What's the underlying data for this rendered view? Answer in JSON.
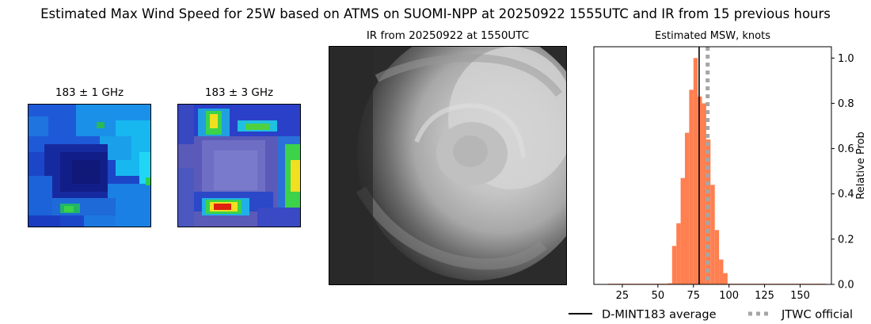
{
  "figure": {
    "title": "Estimated Max Wind Speed for 25W based on ATMS on SUOMI-NPP at 20250922 1555UTC and IR from 15 previous hours"
  },
  "panels": {
    "mw1": {
      "title": "183 ± 1 GHz"
    },
    "mw2": {
      "title": "183 ± 3 GHz"
    },
    "ir": {
      "title": "IR from 20250922 at 1550UTC"
    }
  },
  "legend": {
    "items": [
      {
        "label": "D-MINT183 average",
        "color": "#000000",
        "style": "solid"
      },
      {
        "label": "JTWC official",
        "color": "#a6a6a6",
        "style": "dotted"
      }
    ]
  },
  "chart_data": {
    "type": "bar",
    "title": "Estimated MSW, knots",
    "xlabel": "",
    "ylabel": "Relative Prob",
    "xlim": [
      5,
      172
    ],
    "ylim": [
      0,
      1.05
    ],
    "xticks": [
      25,
      50,
      75,
      100,
      125,
      150
    ],
    "yticks": [
      0.0,
      0.2,
      0.4,
      0.6,
      0.8,
      1.0
    ],
    "yaxis_side": "right",
    "bar_color": "#ff7f50",
    "bin_width": 3,
    "bins": [
      {
        "x": 15,
        "value": 0.003
      },
      {
        "x": 18,
        "value": 0.003
      },
      {
        "x": 21,
        "value": 0.003
      },
      {
        "x": 24,
        "value": 0.003
      },
      {
        "x": 27,
        "value": 0.003
      },
      {
        "x": 30,
        "value": 0.003
      },
      {
        "x": 33,
        "value": 0.003
      },
      {
        "x": 36,
        "value": 0.003
      },
      {
        "x": 39,
        "value": 0.003
      },
      {
        "x": 42,
        "value": 0.003
      },
      {
        "x": 45,
        "value": 0.003
      },
      {
        "x": 48,
        "value": 0.003
      },
      {
        "x": 51,
        "value": 0.003
      },
      {
        "x": 54,
        "value": 0.003
      },
      {
        "x": 57,
        "value": 0.005
      },
      {
        "x": 60,
        "value": 0.17
      },
      {
        "x": 63,
        "value": 0.27
      },
      {
        "x": 66,
        "value": 0.47
      },
      {
        "x": 69,
        "value": 0.67
      },
      {
        "x": 72,
        "value": 0.86
      },
      {
        "x": 75,
        "value": 1.0
      },
      {
        "x": 78,
        "value": 0.83
      },
      {
        "x": 81,
        "value": 0.8
      },
      {
        "x": 84,
        "value": 0.64
      },
      {
        "x": 87,
        "value": 0.44
      },
      {
        "x": 90,
        "value": 0.24
      },
      {
        "x": 93,
        "value": 0.11
      },
      {
        "x": 96,
        "value": 0.05
      },
      {
        "x": 99,
        "value": 0.003
      },
      {
        "x": 102,
        "value": 0.003
      },
      {
        "x": 105,
        "value": 0.003
      },
      {
        "x": 108,
        "value": 0.003
      },
      {
        "x": 111,
        "value": 0.003
      },
      {
        "x": 114,
        "value": 0.003
      },
      {
        "x": 117,
        "value": 0.003
      },
      {
        "x": 120,
        "value": 0.003
      },
      {
        "x": 123,
        "value": 0.003
      },
      {
        "x": 126,
        "value": 0.003
      },
      {
        "x": 129,
        "value": 0.003
      },
      {
        "x": 132,
        "value": 0.003
      },
      {
        "x": 135,
        "value": 0.003
      },
      {
        "x": 138,
        "value": 0.003
      },
      {
        "x": 141,
        "value": 0.003
      },
      {
        "x": 144,
        "value": 0.003
      },
      {
        "x": 147,
        "value": 0.003
      },
      {
        "x": 150,
        "value": 0.003
      },
      {
        "x": 153,
        "value": 0.003
      },
      {
        "x": 156,
        "value": 0.003
      },
      {
        "x": 159,
        "value": 0.003
      },
      {
        "x": 162,
        "value": 0.003
      },
      {
        "x": 165,
        "value": 0.003
      }
    ],
    "vlines": [
      {
        "name": "D-MINT183 average",
        "x": 79,
        "color": "#000000",
        "style": "solid"
      },
      {
        "name": "JTWC official",
        "x": 85,
        "color": "#a6a6a6",
        "style": "dotted"
      }
    ],
    "grid": false,
    "legend_position": "bottom"
  }
}
